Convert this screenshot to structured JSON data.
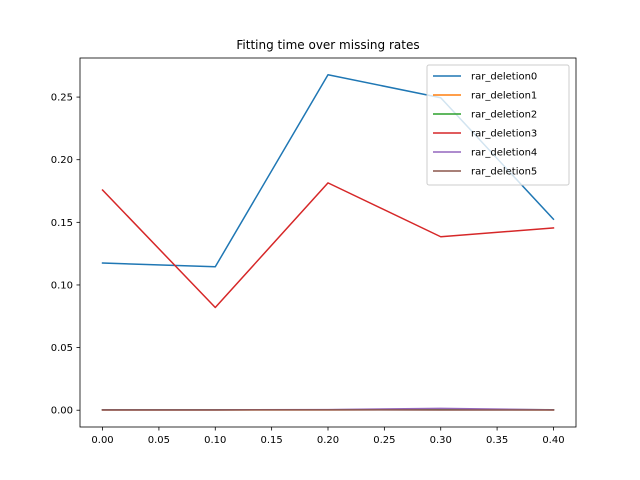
{
  "chart_data": {
    "type": "line",
    "title": "Fitting time over missing rates",
    "xlabel": "",
    "ylabel": "",
    "x": [
      0.0,
      0.1,
      0.2,
      0.3,
      0.4
    ],
    "xticks": [
      "0.00",
      "0.05",
      "0.10",
      "0.15",
      "0.20",
      "0.25",
      "0.30",
      "0.35",
      "0.40"
    ],
    "xtick_values": [
      0.0,
      0.05,
      0.1,
      0.15,
      0.2,
      0.25,
      0.3,
      0.35,
      0.4
    ],
    "yticks": [
      "0.00",
      "0.05",
      "0.10",
      "0.15",
      "0.20",
      "0.25"
    ],
    "ytick_values": [
      0.0,
      0.05,
      0.1,
      0.15,
      0.2,
      0.25
    ],
    "xlim": [
      -0.02,
      0.42
    ],
    "ylim": [
      -0.0134,
      0.2812
    ],
    "grid": false,
    "legend_position": "top-right",
    "series": [
      {
        "name": "rar_deletion0",
        "color": "#1f77b4",
        "values": [
          0.1175,
          0.1145,
          0.2678,
          0.2495,
          0.1525
        ]
      },
      {
        "name": "rar_deletion1",
        "color": "#ff7f0e",
        "values": [
          0.0003,
          0.0003,
          0.0003,
          0.0004,
          0.0003
        ]
      },
      {
        "name": "rar_deletion2",
        "color": "#2ca02c",
        "values": [
          0.0004,
          0.0004,
          0.0004,
          0.0005,
          0.0004
        ]
      },
      {
        "name": "rar_deletion3",
        "color": "#d62728",
        "values": [
          0.1758,
          0.082,
          0.1815,
          0.1385,
          0.1455
        ]
      },
      {
        "name": "rar_deletion4",
        "color": "#9467bd",
        "values": [
          0.0003,
          0.0003,
          0.0005,
          0.0015,
          0.0003
        ]
      },
      {
        "name": "rar_deletion5",
        "color": "#8c564b",
        "values": [
          0.0002,
          0.0002,
          0.0003,
          0.0002,
          0.0002
        ]
      }
    ]
  }
}
